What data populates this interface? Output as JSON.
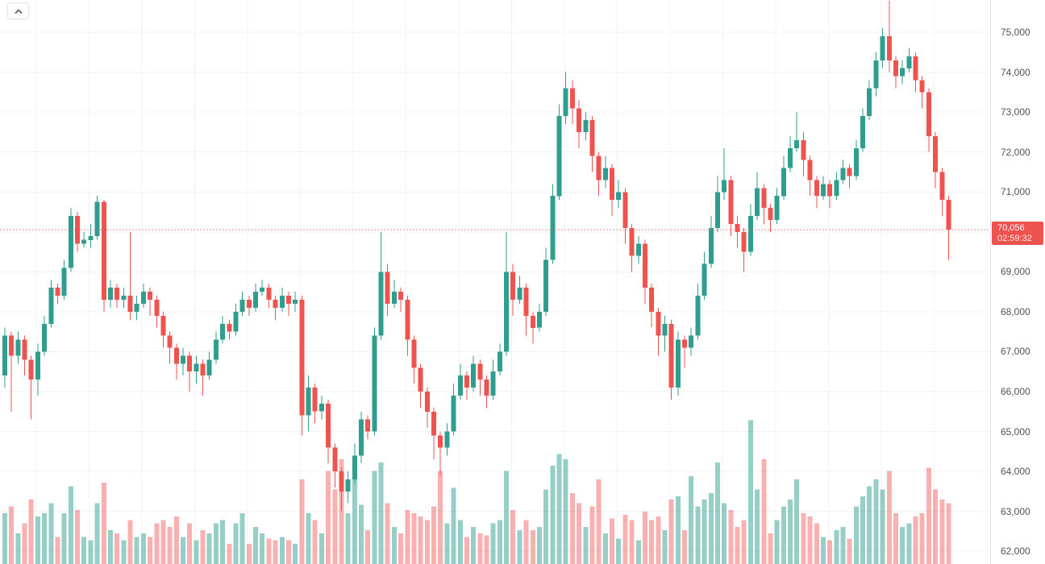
{
  "toolbar": {
    "collapse_button": {
      "icon": "chevron-up"
    }
  },
  "price_scale": {
    "tick_labels": [
      "75,000",
      "74,000",
      "73,000",
      "72,000",
      "71,000",
      "70,000",
      "69,000",
      "68,000",
      "67,000",
      "66,000",
      "65,000",
      "64,000",
      "63,000",
      "62,000"
    ],
    "last_price": 70056,
    "last_price_label": "70,056",
    "countdown": "02:59:32"
  },
  "chart_data": {
    "type": "candlestick+volume",
    "grid": true,
    "legend_position": "none",
    "y_axis": {
      "ticks": [
        75000,
        74000,
        73000,
        72000,
        71000,
        70000,
        69000,
        68000,
        67000,
        66000,
        65000,
        64000,
        63000,
        62000
      ],
      "ylim": [
        61680,
        75810
      ]
    },
    "price_line": {
      "value": 70056,
      "style": "dashed",
      "color": "#ef5350"
    },
    "colors": {
      "up": "#2f9e8f",
      "down": "#ef5350",
      "volume_up": "rgba(47,158,143,0.5)",
      "volume_down": "rgba(239,83,80,0.45)",
      "grid": "#f2f3f6",
      "axis_text": "#50535e",
      "badge_bg": "#ef5350",
      "badge_text": "#ffffff"
    },
    "candles_format": [
      "open",
      "high",
      "low",
      "close",
      "volume"
    ],
    "candles": [
      [
        66400,
        67600,
        66100,
        67400,
        30
      ],
      [
        67400,
        67500,
        65500,
        66900,
        34
      ],
      [
        66900,
        67500,
        66700,
        67300,
        18
      ],
      [
        67300,
        67400,
        66400,
        66800,
        24
      ],
      [
        66800,
        66900,
        65300,
        66300,
        38
      ],
      [
        66300,
        67200,
        65900,
        67000,
        28
      ],
      [
        67000,
        67900,
        66900,
        67700,
        30
      ],
      [
        67700,
        68800,
        67600,
        68600,
        36
      ],
      [
        68600,
        68700,
        68200,
        68400,
        16
      ],
      [
        68400,
        69300,
        68300,
        69100,
        30
      ],
      [
        69100,
        70600,
        69000,
        70400,
        46
      ],
      [
        70400,
        70500,
        69500,
        69700,
        32
      ],
      [
        69700,
        70000,
        69600,
        69800,
        16
      ],
      [
        69800,
        70200,
        69600,
        69900,
        14
      ],
      [
        69900,
        70900,
        69800,
        70750,
        36
      ],
      [
        70750,
        70800,
        68000,
        68300,
        48
      ],
      [
        68300,
        68800,
        68100,
        68600,
        20
      ],
      [
        68600,
        68700,
        68100,
        68300,
        18
      ],
      [
        68300,
        68600,
        68100,
        68400,
        14
      ],
      [
        68400,
        70000,
        67800,
        68000,
        26
      ],
      [
        68000,
        68400,
        67800,
        68200,
        16
      ],
      [
        68200,
        68700,
        68100,
        68500,
        18
      ],
      [
        68500,
        68600,
        67900,
        68300,
        16
      ],
      [
        68300,
        68400,
        67600,
        67900,
        24
      ],
      [
        67900,
        68000,
        67100,
        67400,
        26
      ],
      [
        67400,
        67500,
        66700,
        67100,
        22
      ],
      [
        67100,
        67200,
        66300,
        66700,
        28
      ],
      [
        66700,
        67100,
        66400,
        66900,
        16
      ],
      [
        66900,
        67000,
        66000,
        66500,
        24
      ],
      [
        66500,
        66900,
        66200,
        66700,
        14
      ],
      [
        66700,
        66800,
        65900,
        66400,
        20
      ],
      [
        66400,
        67000,
        66300,
        66800,
        18
      ],
      [
        66800,
        67500,
        66700,
        67300,
        24
      ],
      [
        67300,
        67900,
        67200,
        67700,
        26
      ],
      [
        67700,
        67800,
        67300,
        67500,
        12
      ],
      [
        67500,
        68200,
        67400,
        68000,
        24
      ],
      [
        68000,
        68500,
        67900,
        68300,
        30
      ],
      [
        68300,
        68400,
        67900,
        68100,
        12
      ],
      [
        68100,
        68700,
        68000,
        68500,
        22
      ],
      [
        68500,
        68800,
        68400,
        68600,
        18
      ],
      [
        68600,
        68700,
        68100,
        68300,
        15
      ],
      [
        68300,
        68400,
        67800,
        68100,
        14
      ],
      [
        68100,
        68600,
        68000,
        68400,
        16
      ],
      [
        68400,
        68500,
        67900,
        68200,
        14
      ],
      [
        68200,
        68500,
        68000,
        68300,
        12
      ],
      [
        68300,
        68400,
        64900,
        65400,
        50
      ],
      [
        65400,
        66400,
        65000,
        66100,
        30
      ],
      [
        66100,
        66200,
        65200,
        65500,
        26
      ],
      [
        65500,
        65900,
        65300,
        65700,
        18
      ],
      [
        65700,
        65800,
        64200,
        64600,
        55
      ],
      [
        64600,
        64700,
        63600,
        64000,
        44
      ],
      [
        64000,
        64100,
        63000,
        63500,
        62
      ],
      [
        63500,
        64000,
        63200,
        63800,
        30
      ],
      [
        63800,
        64700,
        63700,
        64400,
        50
      ],
      [
        64400,
        65500,
        64200,
        65300,
        35
      ],
      [
        65300,
        65400,
        64800,
        65000,
        20
      ],
      [
        65000,
        67600,
        64900,
        67400,
        55
      ],
      [
        67400,
        70000,
        67300,
        69000,
        60
      ],
      [
        69000,
        69200,
        67900,
        68200,
        36
      ],
      [
        68200,
        68800,
        68100,
        68500,
        22
      ],
      [
        68500,
        68600,
        68000,
        68300,
        18
      ],
      [
        68300,
        68400,
        66900,
        67300,
        32
      ],
      [
        67300,
        67400,
        66200,
        66600,
        30
      ],
      [
        66600,
        66700,
        65600,
        66000,
        28
      ],
      [
        66000,
        66100,
        65100,
        65500,
        26
      ],
      [
        65500,
        65600,
        64300,
        64900,
        34
      ],
      [
        64900,
        65000,
        63900,
        64600,
        55
      ],
      [
        64600,
        65200,
        64400,
        65000,
        24
      ],
      [
        65000,
        66200,
        64900,
        65900,
        45
      ],
      [
        65900,
        66700,
        65800,
        66400,
        26
      ],
      [
        66400,
        66500,
        65800,
        66100,
        16
      ],
      [
        66100,
        66900,
        66000,
        66700,
        22
      ],
      [
        66700,
        66800,
        65900,
        66300,
        18
      ],
      [
        66300,
        66400,
        65600,
        65900,
        17
      ],
      [
        65900,
        66800,
        65800,
        66500,
        24
      ],
      [
        66500,
        67200,
        66400,
        67000,
        26
      ],
      [
        67000,
        70000,
        66900,
        69000,
        55
      ],
      [
        69000,
        69200,
        67900,
        68300,
        32
      ],
      [
        68300,
        68900,
        68200,
        68600,
        20
      ],
      [
        68600,
        68700,
        67400,
        67900,
        26
      ],
      [
        67900,
        68000,
        67200,
        67600,
        20
      ],
      [
        67600,
        68200,
        67500,
        68000,
        22
      ],
      [
        68000,
        69600,
        67900,
        69300,
        44
      ],
      [
        69300,
        71200,
        69200,
        70900,
        58
      ],
      [
        70900,
        73200,
        70800,
        72900,
        65
      ],
      [
        72900,
        74000,
        72700,
        73600,
        62
      ],
      [
        73600,
        73800,
        72700,
        73100,
        42
      ],
      [
        73100,
        73300,
        72100,
        72500,
        36
      ],
      [
        72500,
        73000,
        72300,
        72800,
        22
      ],
      [
        72800,
        72900,
        71500,
        71900,
        34
      ],
      [
        71900,
        72000,
        70900,
        71300,
        50
      ],
      [
        71300,
        71900,
        71100,
        71600,
        18
      ],
      [
        71600,
        71700,
        70400,
        70800,
        27
      ],
      [
        70800,
        71300,
        70600,
        71000,
        15
      ],
      [
        71000,
        71100,
        69700,
        70100,
        29
      ],
      [
        70100,
        70200,
        69000,
        69400,
        26
      ],
      [
        69400,
        69900,
        69200,
        69700,
        14
      ],
      [
        69700,
        69800,
        68200,
        68600,
        31
      ],
      [
        68600,
        68700,
        67600,
        68000,
        26
      ],
      [
        68000,
        68100,
        66900,
        67400,
        28
      ],
      [
        67400,
        67900,
        67000,
        67700,
        20
      ],
      [
        67700,
        67800,
        65800,
        66100,
        38
      ],
      [
        66100,
        67500,
        65900,
        67300,
        40
      ],
      [
        67300,
        67400,
        66600,
        67100,
        20
      ],
      [
        67100,
        67600,
        66900,
        67400,
        52
      ],
      [
        67400,
        68700,
        67300,
        68400,
        34
      ],
      [
        68400,
        69500,
        68300,
        69200,
        38
      ],
      [
        69200,
        70400,
        69100,
        70100,
        42
      ],
      [
        70100,
        71400,
        70000,
        71000,
        60
      ],
      [
        71000,
        72100,
        70800,
        71300,
        36
      ],
      [
        71300,
        71400,
        69900,
        70200,
        32
      ],
      [
        70200,
        70400,
        69600,
        70000,
        22
      ],
      [
        70000,
        70100,
        69000,
        69500,
        26
      ],
      [
        69500,
        70700,
        69400,
        70400,
        85
      ],
      [
        70400,
        71500,
        70300,
        71100,
        44
      ],
      [
        71100,
        71200,
        70200,
        70600,
        62
      ],
      [
        70600,
        70700,
        70000,
        70300,
        18
      ],
      [
        70300,
        71100,
        70200,
        70900,
        26
      ],
      [
        70900,
        71900,
        70800,
        71600,
        34
      ],
      [
        71600,
        72400,
        71500,
        72100,
        38
      ],
      [
        72100,
        73000,
        72000,
        72300,
        50
      ],
      [
        72300,
        72500,
        71400,
        71800,
        30
      ],
      [
        71800,
        71900,
        70900,
        71300,
        28
      ],
      [
        71300,
        71400,
        70600,
        70900,
        24
      ],
      [
        70900,
        71400,
        70800,
        71200,
        16
      ],
      [
        71200,
        71300,
        70600,
        70900,
        14
      ],
      [
        70900,
        71500,
        70800,
        71300,
        20
      ],
      [
        71300,
        71800,
        71200,
        71600,
        22
      ],
      [
        71600,
        71700,
        71100,
        71400,
        15
      ],
      [
        71400,
        72300,
        71300,
        72100,
        34
      ],
      [
        72100,
        73100,
        72000,
        72900,
        40
      ],
      [
        72900,
        73800,
        72800,
        73600,
        46
      ],
      [
        73600,
        74500,
        73400,
        74300,
        50
      ],
      [
        74300,
        75100,
        74100,
        74900,
        44
      ],
      [
        74900,
        75800,
        74000,
        74300,
        55
      ],
      [
        74300,
        74400,
        73600,
        73900,
        30
      ],
      [
        73900,
        74300,
        73700,
        74100,
        22
      ],
      [
        74100,
        74600,
        74000,
        74400,
        24
      ],
      [
        74400,
        74500,
        73500,
        73800,
        28
      ],
      [
        73800,
        73900,
        73100,
        73500,
        30
      ],
      [
        73500,
        73600,
        72000,
        72400,
        57
      ],
      [
        72400,
        72500,
        71100,
        71500,
        44
      ],
      [
        71500,
        71600,
        70400,
        70800,
        38
      ],
      [
        70800,
        70900,
        69300,
        70056,
        36
      ]
    ]
  }
}
